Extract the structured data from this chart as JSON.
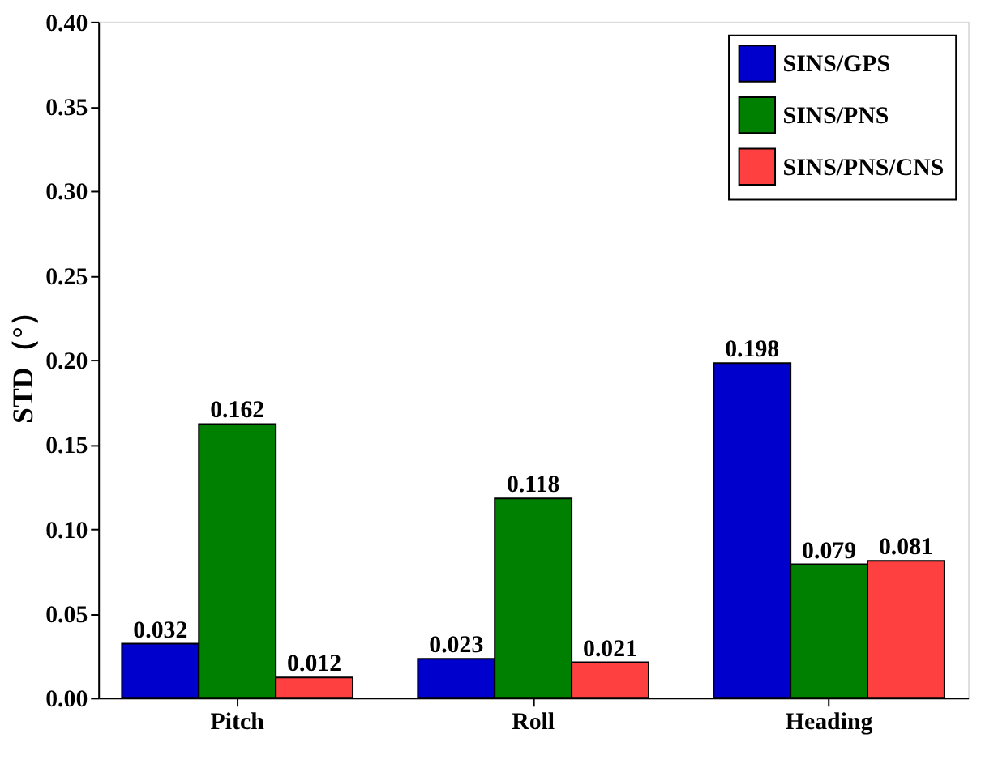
{
  "chart_data": {
    "type": "bar",
    "ylabel": "STD（°）",
    "categories": [
      "Pitch",
      "Roll",
      "Heading"
    ],
    "series": [
      {
        "name": "SINS/GPS",
        "color": "#0000cc",
        "values": [
          0.032,
          0.023,
          0.198
        ]
      },
      {
        "name": "SINS/PNS",
        "color": "#008000",
        "values": [
          0.162,
          0.118,
          0.079
        ]
      },
      {
        "name": "SINS/PNS/CNS",
        "color": "#ff4040",
        "values": [
          0.012,
          0.021,
          0.081
        ]
      }
    ],
    "ylim": [
      0,
      0.4
    ],
    "yticks": [
      {
        "value": 0,
        "label": "0.00"
      },
      {
        "value": 0.05,
        "label": "0.05"
      },
      {
        "value": 0.1,
        "label": "0.10"
      },
      {
        "value": 0.15,
        "label": "0.15"
      },
      {
        "value": 0.2,
        "label": "0.20"
      },
      {
        "value": 0.25,
        "label": "0.25"
      },
      {
        "value": 0.3,
        "label": "0.30"
      },
      {
        "value": 0.35,
        "label": "0.35"
      },
      {
        "value": 0.4,
        "label": "0.40"
      }
    ],
    "data_labels": true,
    "legend": "top right",
    "grid": false
  }
}
